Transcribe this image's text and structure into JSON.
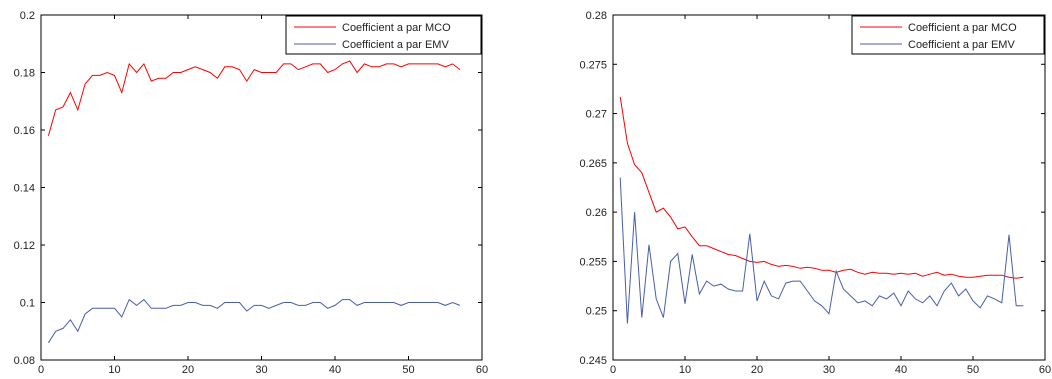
{
  "chart_data": [
    {
      "type": "line",
      "xlim": [
        0,
        60
      ],
      "ylim": [
        0.08,
        0.2
      ],
      "xticks": [
        "0",
        "10",
        "20",
        "30",
        "40",
        "50",
        "60"
      ],
      "yticks": [
        "0.08",
        "0.1",
        "0.12",
        "0.14",
        "0.16",
        "0.18",
        "0.2"
      ],
      "grid": false,
      "legend_position": "top-right",
      "x": [
        1,
        2,
        3,
        4,
        5,
        6,
        7,
        8,
        9,
        10,
        11,
        12,
        13,
        14,
        15,
        16,
        17,
        18,
        19,
        20,
        21,
        22,
        23,
        24,
        25,
        26,
        27,
        28,
        29,
        30,
        31,
        32,
        33,
        34,
        35,
        36,
        37,
        38,
        39,
        40,
        41,
        42,
        43,
        44,
        45,
        46,
        47,
        48,
        49,
        50,
        51,
        52,
        53,
        54,
        55,
        56,
        57
      ],
      "series": [
        {
          "name": "Coefficient a par MCO",
          "color": "#ff0000",
          "values": [
            0.158,
            0.167,
            0.168,
            0.173,
            0.167,
            0.176,
            0.179,
            0.179,
            0.18,
            0.179,
            0.173,
            0.183,
            0.18,
            0.183,
            0.177,
            0.178,
            0.178,
            0.18,
            0.18,
            0.181,
            0.182,
            0.181,
            0.18,
            0.178,
            0.182,
            0.182,
            0.181,
            0.177,
            0.181,
            0.18,
            0.18,
            0.18,
            0.183,
            0.183,
            0.181,
            0.182,
            0.183,
            0.183,
            0.18,
            0.181,
            0.183,
            0.184,
            0.18,
            0.183,
            0.182,
            0.182,
            0.183,
            0.183,
            0.182,
            0.183,
            0.183,
            0.183,
            0.183,
            0.183,
            0.182,
            0.183,
            0.181
          ]
        },
        {
          "name": "Coefficient a par EMV",
          "color": "#4a5ea8",
          "values": [
            0.086,
            0.09,
            0.091,
            0.094,
            0.09,
            0.096,
            0.098,
            0.098,
            0.098,
            0.098,
            0.095,
            0.101,
            0.099,
            0.101,
            0.098,
            0.098,
            0.098,
            0.099,
            0.099,
            0.1,
            0.1,
            0.099,
            0.099,
            0.098,
            0.1,
            0.1,
            0.1,
            0.097,
            0.099,
            0.099,
            0.098,
            0.099,
            0.1,
            0.1,
            0.099,
            0.099,
            0.1,
            0.1,
            0.098,
            0.099,
            0.101,
            0.101,
            0.099,
            0.1,
            0.1,
            0.1,
            0.1,
            0.1,
            0.099,
            0.1,
            0.1,
            0.1,
            0.1,
            0.1,
            0.099,
            0.1,
            0.099
          ]
        }
      ]
    },
    {
      "type": "line",
      "xlim": [
        0,
        60
      ],
      "ylim": [
        0.245,
        0.28
      ],
      "xticks": [
        "0",
        "10",
        "20",
        "30",
        "40",
        "50",
        "60"
      ],
      "yticks": [
        "0.245",
        "0.25",
        "0.255",
        "0.26",
        "0.265",
        "0.27",
        "0.275",
        "0.28"
      ],
      "grid": false,
      "legend_position": "top-right",
      "x": [
        1,
        2,
        3,
        4,
        5,
        6,
        7,
        8,
        9,
        10,
        11,
        12,
        13,
        14,
        15,
        16,
        17,
        18,
        19,
        20,
        21,
        22,
        23,
        24,
        25,
        26,
        27,
        28,
        29,
        30,
        31,
        32,
        33,
        34,
        35,
        36,
        37,
        38,
        39,
        40,
        41,
        42,
        43,
        44,
        45,
        46,
        47,
        48,
        49,
        50,
        51,
        52,
        53,
        54,
        55,
        56,
        57
      ],
      "series": [
        {
          "name": "Coefficient a par MCO",
          "color": "#ff0000",
          "values": [
            0.2717,
            0.267,
            0.2648,
            0.264,
            0.262,
            0.26,
            0.2604,
            0.2595,
            0.2583,
            0.2585,
            0.2575,
            0.2566,
            0.2566,
            0.2563,
            0.256,
            0.2557,
            0.2556,
            0.2553,
            0.255,
            0.2549,
            0.255,
            0.2547,
            0.2545,
            0.2546,
            0.2545,
            0.2543,
            0.2544,
            0.2543,
            0.2541,
            0.2541,
            0.2539,
            0.2541,
            0.2542,
            0.2539,
            0.2537,
            0.2539,
            0.2538,
            0.2538,
            0.2537,
            0.2538,
            0.2537,
            0.2538,
            0.2535,
            0.2537,
            0.2539,
            0.2536,
            0.2537,
            0.2535,
            0.2534,
            0.2534,
            0.2535,
            0.2536,
            0.2536,
            0.2536,
            0.2534,
            0.2533,
            0.2534
          ]
        },
        {
          "name": "Coefficient a par EMV",
          "color": "#4a5ea8",
          "values": [
            0.2635,
            0.2487,
            0.26,
            0.2493,
            0.2567,
            0.2512,
            0.2493,
            0.255,
            0.2558,
            0.2507,
            0.2557,
            0.2517,
            0.253,
            0.2525,
            0.2527,
            0.2522,
            0.252,
            0.252,
            0.2578,
            0.251,
            0.253,
            0.2515,
            0.2512,
            0.2528,
            0.253,
            0.253,
            0.252,
            0.251,
            0.2505,
            0.2497,
            0.254,
            0.2522,
            0.2515,
            0.2508,
            0.251,
            0.2505,
            0.2515,
            0.2512,
            0.2518,
            0.2505,
            0.252,
            0.2512,
            0.2508,
            0.2515,
            0.2505,
            0.252,
            0.2528,
            0.2515,
            0.2522,
            0.251,
            0.2503,
            0.2515,
            0.2512,
            0.2508,
            0.2577,
            0.2505,
            0.2505
          ]
        }
      ]
    }
  ]
}
